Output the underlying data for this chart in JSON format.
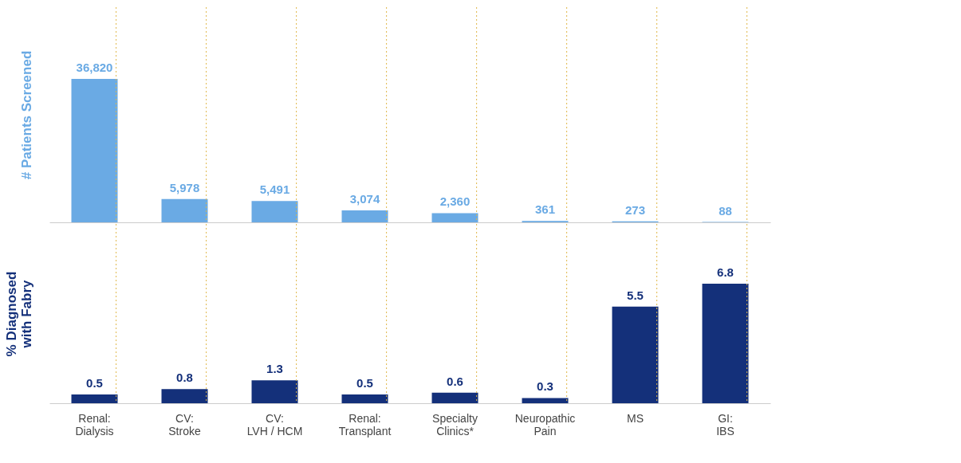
{
  "chart_data": [
    {
      "type": "bar",
      "ylabel": "# Patients Screened",
      "categories": [
        "Renal:\nDialysis",
        "CV:\nStroke",
        "CV:\nLVH / HCM",
        "Renal:\nTransplant",
        "Specialty\nClinics*",
        "Neuropathic\nPain",
        "MS",
        "GI:\nIBS"
      ],
      "values": [
        36820,
        5978,
        5491,
        3074,
        2360,
        361,
        273,
        88
      ],
      "color": "#6aaae4",
      "value_labels": [
        "36,820",
        "5,978",
        "5,491",
        "3,074",
        "2,360",
        "361",
        "273",
        "88"
      ],
      "tick_labels": false,
      "ref_lines": [
        {
          "axis": "x",
          "value": "Renal:\nDialysis",
          "color": "#e0b84a",
          "line_style": "dotted"
        },
        {
          "axis": "x",
          "value": "CV:\nStroke",
          "color": "#e0b84a",
          "line_style": "dotted"
        },
        {
          "axis": "x",
          "value": "CV:\nLVH / HCM",
          "color": "#e0b84a",
          "line_style": "dotted"
        },
        {
          "axis": "x",
          "value": "Renal:\nTransplant",
          "color": "#e0b84a",
          "line_style": "dotted"
        },
        {
          "axis": "x",
          "value": "Specialty\nClinics*",
          "color": "#e0b84a",
          "line_style": "dotted"
        },
        {
          "axis": "x",
          "value": "Neuropathic\nPain",
          "color": "#e0b84a",
          "line_style": "dotted"
        },
        {
          "axis": "x",
          "value": "MS",
          "color": "#e0b84a",
          "line_style": "dotted"
        },
        {
          "axis": "x",
          "value": "GI:\nIBS",
          "color": "#e0b84a",
          "line_style": "dotted"
        }
      ]
    },
    {
      "type": "bar",
      "ylabel": "% Diagnosed\nwith Fabry",
      "categories": [
        "Renal:\nDialysis",
        "CV:\nStroke",
        "CV:\nLVH / HCM",
        "Renal:\nTransplant",
        "Specialty\nClinics*",
        "Neuropathic\nPain",
        "MS",
        "GI:\nIBS"
      ],
      "values": [
        0.5,
        0.8,
        1.3,
        0.5,
        0.6,
        0.3,
        5.5,
        6.8
      ],
      "color": "#14307a",
      "data_labels": true,
      "tick_labels": "x",
      "ref_lines": [
        {
          "axis": "x",
          "value": "Renal:\nDialysis",
          "color": "#e0b84a",
          "line_style": "dotted"
        },
        {
          "axis": "x",
          "value": "CV:\nStroke",
          "color": "#e0b84a",
          "line_style": "dotted"
        },
        {
          "axis": "x",
          "value": "CV:\nLVH / HCM",
          "color": "#e0b84a",
          "line_style": "dotted"
        },
        {
          "axis": "x",
          "value": "Renal:\nTransplant",
          "color": "#e0b84a",
          "line_style": "dotted"
        },
        {
          "axis": "x",
          "value": "Specialty\nClinics*",
          "color": "#e0b84a",
          "line_style": "dotted"
        },
        {
          "axis": "x",
          "value": "Neuropathic\nPain",
          "color": "#e0b84a",
          "line_style": "dotted"
        },
        {
          "axis": "x",
          "value": "MS",
          "color": "#e0b84a",
          "line_style": "dotted"
        },
        {
          "axis": "x",
          "value": "GI:\nIBS",
          "color": "#e0b84a",
          "line_style": "dotted"
        }
      ]
    }
  ]
}
